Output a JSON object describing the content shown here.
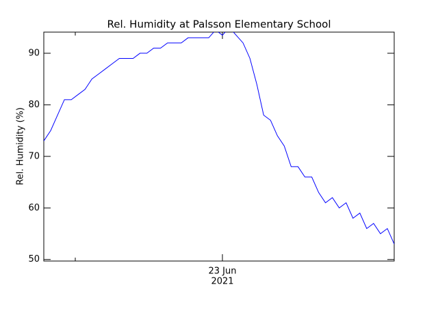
{
  "chart_data": {
    "type": "line",
    "title": "Rel. Humidity at Palsson Elementary School",
    "y_label": "Rel. Humidity (%)",
    "x_tick_label": "23 Jun",
    "x_tick_year": "2021",
    "series": [
      {
        "name": "Rel. Humidity",
        "color": "#0000ff",
        "values": [
          73,
          75,
          78,
          81,
          81,
          82,
          83,
          85,
          86,
          87,
          88,
          89,
          89,
          89,
          90,
          90,
          91,
          91,
          92,
          92,
          92,
          93,
          93,
          93,
          93,
          94.5,
          93.5,
          95,
          93.5,
          92,
          89,
          84,
          78,
          77,
          74,
          72,
          68,
          68,
          66,
          66,
          63,
          61,
          62,
          60,
          61,
          58,
          59,
          56,
          57,
          55,
          56,
          53
        ]
      }
    ],
    "ylim": [
      49.7,
      94.1
    ],
    "yticks": [
      50,
      60,
      70,
      80,
      90
    ]
  }
}
